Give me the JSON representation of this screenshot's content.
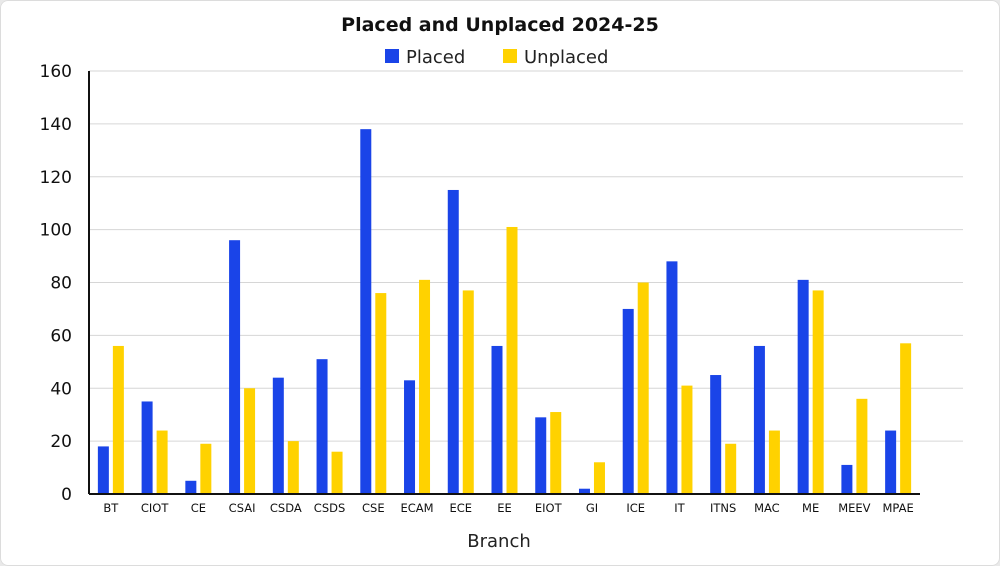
{
  "chart_data": {
    "type": "bar",
    "title": "Placed and Unplaced 2024-25",
    "xlabel": "Branch",
    "ylabel": "",
    "ylim": [
      0,
      160
    ],
    "yticks": [
      0,
      20,
      40,
      60,
      80,
      100,
      120,
      140,
      160
    ],
    "grid": true,
    "legend_position": "top-center",
    "categories": [
      "BT",
      "CIOT",
      "CE",
      "CSAI",
      "CSDA",
      "CSDS",
      "CSE",
      "ECAM",
      "ECE",
      "EE",
      "EIOT",
      "GI",
      "ICE",
      "IT",
      "ITNS",
      "MAC",
      "ME",
      "MEEV",
      "MPAE"
    ],
    "series": [
      {
        "name": "Placed",
        "color": "#1a44e8",
        "values": [
          18,
          35,
          5,
          96,
          44,
          51,
          138,
          43,
          115,
          56,
          29,
          2,
          70,
          88,
          45,
          56,
          81,
          11,
          24
        ]
      },
      {
        "name": "Unplaced",
        "color": "#ffd200",
        "values": [
          56,
          24,
          19,
          40,
          20,
          16,
          76,
          81,
          77,
          101,
          31,
          12,
          80,
          41,
          19,
          24,
          77,
          36,
          57
        ]
      }
    ]
  }
}
